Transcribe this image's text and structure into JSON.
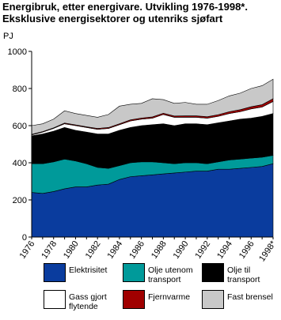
{
  "chart_data": {
    "type": "stacked_area",
    "title": "Energibruk, etter energivare. Utvikling 1976-1998*.",
    "subtitle": "Eksklusive energisektorer og utenriks sjøfart",
    "y_label": "PJ",
    "categories": [
      "1976",
      null,
      "1978",
      null,
      "1980",
      null,
      "1982",
      null,
      "1984",
      null,
      "1986",
      null,
      "1988",
      null,
      "1990",
      null,
      "1992",
      null,
      "1994",
      null,
      "1996",
      null,
      "1998*"
    ],
    "series": [
      {
        "name": "Elektrisitet",
        "color": "#0a3c9e",
        "values": [
          240,
          235,
          245,
          260,
          270,
          270,
          280,
          285,
          310,
          325,
          330,
          335,
          340,
          345,
          350,
          355,
          355,
          365,
          365,
          370,
          375,
          380,
          395
        ]
      },
      {
        "name": "Olje utenom transport",
        "color": "#009a9a",
        "values": [
          155,
          160,
          160,
          160,
          140,
          125,
          95,
          85,
          75,
          75,
          75,
          70,
          60,
          50,
          50,
          45,
          40,
          40,
          50,
          50,
          50,
          50,
          45
        ]
      },
      {
        "name": "Olje til transport",
        "color": "#000000",
        "values": [
          150,
          160,
          165,
          170,
          165,
          170,
          180,
          185,
          190,
          190,
          195,
          200,
          210,
          205,
          210,
          210,
          210,
          210,
          210,
          215,
          215,
          220,
          225
        ]
      },
      {
        "name": "Gass gjort flytende",
        "color": "#ffffff",
        "values": [
          5,
          10,
          15,
          20,
          25,
          25,
          25,
          30,
          30,
          35,
          35,
          35,
          50,
          45,
          35,
          35,
          35,
          35,
          40,
          40,
          50,
          50,
          65
        ]
      },
      {
        "name": "Fjernvarme",
        "color": "#a00000",
        "values": [
          3,
          3,
          3,
          4,
          4,
          4,
          5,
          5,
          5,
          6,
          6,
          7,
          7,
          7,
          8,
          8,
          8,
          9,
          10,
          11,
          12,
          13,
          15
        ]
      },
      {
        "name": "Fast brensel",
        "color": "#c8c8c8",
        "values": [
          47,
          42,
          47,
          66,
          61,
          61,
          60,
          70,
          95,
          84,
          79,
          98,
          73,
          68,
          72,
          62,
          67,
          76,
          85,
          89,
          98,
          102,
          105
        ]
      }
    ],
    "ylim": [
      0,
      1000
    ],
    "yticks": [
      0,
      200,
      400,
      600,
      800,
      1000
    ],
    "grid": false
  }
}
